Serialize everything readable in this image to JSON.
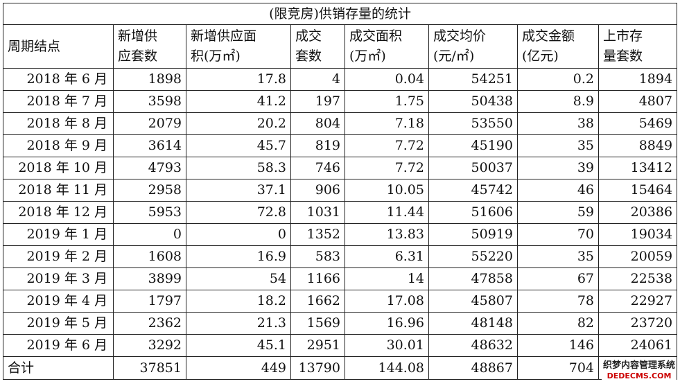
{
  "title": "(限竞房)供销存量的统计",
  "headers": [
    [
      "周期结点"
    ],
    [
      "新增供",
      "应套数"
    ],
    [
      "新增供应面",
      "积(万㎡)"
    ],
    [
      "成交",
      "套数"
    ],
    [
      "成交面积",
      "(万㎡)"
    ],
    [
      "成交均价",
      "(元/㎡)"
    ],
    [
      "成交金额",
      "(亿元)"
    ],
    [
      "上市存",
      "量套数"
    ]
  ],
  "rows": [
    [
      "2018 年 6 月",
      "1898",
      "17.8",
      "4",
      "0.04",
      "54251",
      "0.2",
      "1894"
    ],
    [
      "2018 年 7 月",
      "3598",
      "41.2",
      "197",
      "1.75",
      "50438",
      "8.9",
      "4807"
    ],
    [
      "2018 年 8 月",
      "2079",
      "20.2",
      "804",
      "7.18",
      "53550",
      "38",
      "5469"
    ],
    [
      "2018 年 9 月",
      "3614",
      "45.7",
      "819",
      "7.72",
      "45190",
      "35",
      "8849"
    ],
    [
      "2018 年 10 月",
      "4793",
      "58.3",
      "746",
      "7.72",
      "50037",
      "39",
      "13412"
    ],
    [
      "2018 年 11 月",
      "2958",
      "37.1",
      "906",
      "10.05",
      "45742",
      "46",
      "15464"
    ],
    [
      "2018 年 12 月",
      "5953",
      "72.8",
      "1031",
      "11.44",
      "51606",
      "59",
      "20386"
    ],
    [
      "2019 年 1 月",
      "0",
      "0",
      "1352",
      "13.83",
      "50919",
      "70",
      "19034"
    ],
    [
      "2019 年 2 月",
      "1608",
      "16.9",
      "583",
      "6.31",
      "55220",
      "35",
      "20059"
    ],
    [
      "2019 年 3 月",
      "3899",
      "54",
      "1166",
      "14",
      "47858",
      "67",
      "22538"
    ],
    [
      "2019 年 4 月",
      "1797",
      "18.2",
      "1662",
      "17.08",
      "45807",
      "78",
      "22927"
    ],
    [
      "2019 年 5 月",
      "2362",
      "21.3",
      "1569",
      "16.96",
      "48148",
      "82",
      "23720"
    ],
    [
      "2019 年 6 月",
      "3292",
      "45.1",
      "2951",
      "30.01",
      "48632",
      "146",
      "24061"
    ]
  ],
  "total": [
    "合计",
    "37851",
    "449",
    "13790",
    "144.08",
    "48867",
    "704",
    ""
  ],
  "watermark": {
    "line1": "织梦内容管理系统",
    "line2": "DEDECMS.COM"
  }
}
